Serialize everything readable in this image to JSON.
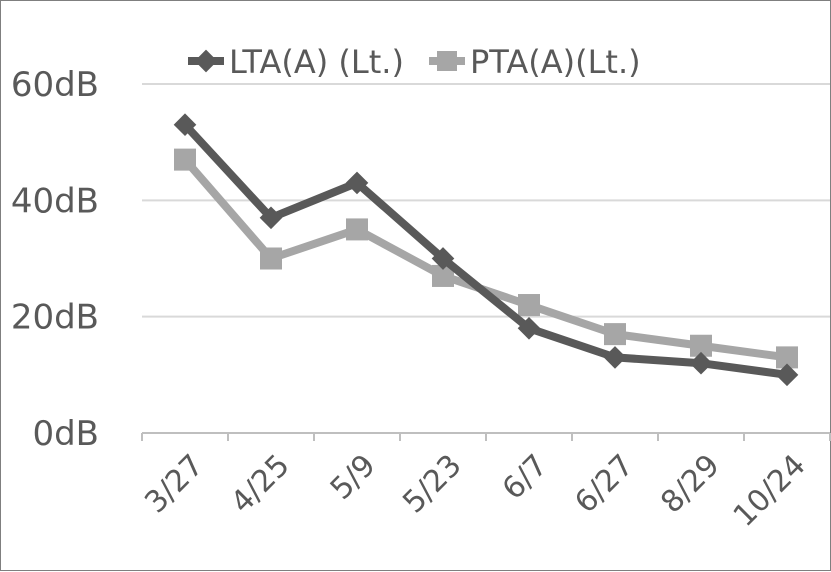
{
  "chart_data": {
    "type": "line",
    "categories": [
      "3/27",
      "4/25",
      "5/9",
      "5/23",
      "6/7",
      "6/27",
      "8/29",
      "10/24"
    ],
    "series": [
      {
        "name": "LTA(A) (Lt.)",
        "values": [
          53,
          37,
          43,
          30,
          18,
          13,
          12,
          10
        ],
        "color": "#595959",
        "marker": "diamond"
      },
      {
        "name": "PTA(A)(Lt.)",
        "values": [
          47,
          30,
          35,
          27,
          22,
          17,
          15,
          13
        ],
        "color": "#a6a6a6",
        "marker": "square"
      }
    ],
    "y_ticks": [
      "0dB",
      "20dB",
      "40dB",
      "60dB"
    ],
    "y_tick_values": [
      0,
      20,
      40,
      60
    ],
    "ylim": [
      0,
      60
    ],
    "grid": true,
    "legend_position": "top"
  }
}
